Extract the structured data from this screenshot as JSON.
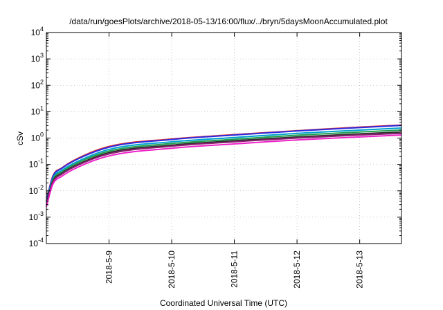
{
  "chart_data": {
    "type": "line",
    "title": "/data/run/goesPlots/archive/2018-05-13/16:00/flux/../bryn/5daysMoonAccumulated.plot",
    "xlabel": "Coordinated Universal Time (UTC)",
    "ylabel": "cSv",
    "yscale": "log",
    "ylim": [
      0.0001,
      10000
    ],
    "xlim": [
      "2018-05-08 00:00",
      "2018-05-13 16:00"
    ],
    "x_ticks": [
      "2018-5-9",
      "2018-5-10",
      "2018-5-11",
      "2018-5-12",
      "2018-5-13"
    ],
    "y_ticks": [
      {
        "base": "10",
        "exp": "-4"
      },
      {
        "base": "10",
        "exp": "-3"
      },
      {
        "base": "10",
        "exp": "-2"
      },
      {
        "base": "10",
        "exp": "-1"
      },
      {
        "base": "10",
        "exp": "0"
      },
      {
        "base": "10",
        "exp": "1"
      },
      {
        "base": "10",
        "exp": "2"
      },
      {
        "base": "10",
        "exp": "3"
      },
      {
        "base": "10",
        "exp": "4"
      }
    ],
    "grid": true,
    "x": [
      "2018-05-08 00:00",
      "2018-05-08 02:24",
      "2018-05-08 06:00",
      "2018-05-08 12:00",
      "2018-05-09 00:00",
      "2018-05-10 00:00",
      "2018-05-11 00:00",
      "2018-05-12 00:00",
      "2018-05-13 00:00",
      "2018-05-13 16:00"
    ],
    "series": [
      {
        "color": "#e8312e",
        "values": [
          0.004,
          0.035,
          0.075,
          0.17,
          0.48,
          0.92,
          1.35,
          1.9,
          2.6,
          3.1
        ]
      },
      {
        "color": "#2a2ae0",
        "values": [
          0.004,
          0.033,
          0.072,
          0.16,
          0.45,
          0.88,
          1.3,
          1.85,
          2.5,
          3.0
        ]
      },
      {
        "color": "#00a0d0",
        "values": [
          0.003,
          0.028,
          0.06,
          0.13,
          0.37,
          0.72,
          1.05,
          1.5,
          2.0,
          2.4
        ]
      },
      {
        "color": "#20a050",
        "values": [
          0.003,
          0.025,
          0.053,
          0.115,
          0.32,
          0.62,
          0.9,
          1.28,
          1.7,
          2.0
        ]
      },
      {
        "color": "#303030",
        "values": [
          0.003,
          0.022,
          0.047,
          0.1,
          0.28,
          0.54,
          0.79,
          1.1,
          1.45,
          1.7
        ]
      },
      {
        "color": "#8a2070",
        "values": [
          0.003,
          0.02,
          0.043,
          0.092,
          0.25,
          0.49,
          0.72,
          1.0,
          1.3,
          1.5
        ]
      },
      {
        "color": "#ee20c8",
        "values": [
          0.0025,
          0.017,
          0.036,
          0.078,
          0.21,
          0.41,
          0.6,
          0.85,
          1.1,
          1.3
        ]
      }
    ]
  }
}
